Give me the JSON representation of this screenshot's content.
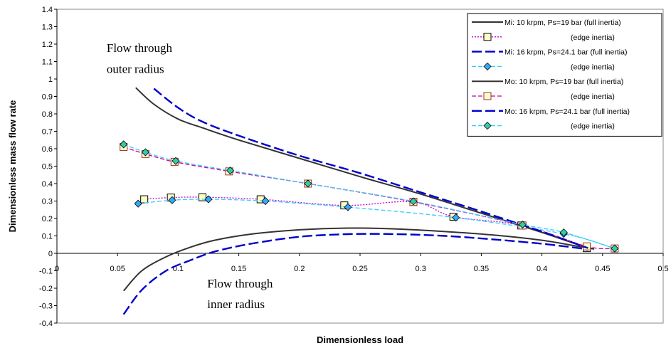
{
  "chart_data": {
    "type": "line",
    "title": "",
    "xlabel": "Dimensionless load",
    "ylabel": "Dimensionless mass flow rate",
    "xlim": [
      0,
      0.5
    ],
    "ylim": [
      -0.4,
      1.4
    ],
    "x_ticks": [
      0,
      0.05,
      0.1,
      0.15,
      0.2,
      0.25,
      0.3,
      0.35,
      0.4,
      0.45,
      0.5
    ],
    "x_tick_labels": [
      "0",
      "0.05",
      "0.1",
      "0.15",
      "0.2",
      "0.25",
      "0.3",
      "0.35",
      "0.4",
      "0.45",
      "0.5"
    ],
    "y_ticks": [
      -0.4,
      -0.3,
      -0.2,
      -0.1,
      0,
      0.1,
      0.2,
      0.3,
      0.4,
      0.5,
      0.6,
      0.7,
      0.8,
      0.9,
      1,
      1.1,
      1.2,
      1.3,
      1.4
    ],
    "y_tick_labels": [
      "-0.4",
      "-0.3",
      "-0.2",
      "-0.1",
      "0",
      "0.1",
      "0.2",
      "0.3",
      "0.4",
      "0.5",
      "0.6",
      "0.7",
      "0.8",
      "0.9",
      "1",
      "1.1",
      "1.2",
      "1.3",
      "1.4"
    ],
    "grid": false,
    "legend_position": "top-right",
    "annotations": [
      {
        "text": "Flow through",
        "x": 0.041,
        "y": 1.155
      },
      {
        "text": "outer radius",
        "x": 0.041,
        "y": 1.035
      },
      {
        "text": "Flow through",
        "x": 0.124,
        "y": -0.195
      },
      {
        "text": "inner radius",
        "x": 0.124,
        "y": -0.315
      }
    ],
    "series": [
      {
        "name": "Mi: 10 krpm, Ps=19 bar (full inertia)",
        "color": "#333333",
        "dash": "solid",
        "marker": "none",
        "x": [
          0.055,
          0.07,
          0.09,
          0.11,
          0.13,
          0.16,
          0.2,
          0.24,
          0.28,
          0.32,
          0.36,
          0.4,
          0.43,
          0.443
        ],
        "y": [
          -0.215,
          -0.1,
          -0.02,
          0.035,
          0.075,
          0.11,
          0.135,
          0.145,
          0.14,
          0.125,
          0.105,
          0.075,
          0.04,
          0.025
        ]
      },
      {
        "name": "(edge inertia)",
        "color": "#cc00cc",
        "dash": "dotted",
        "marker": "square",
        "marker_fill": "#ffffcc",
        "marker_stroke": "#000000",
        "x": [
          0.072,
          0.094,
          0.12,
          0.168,
          0.237,
          0.294,
          0.327,
          0.383,
          0.437
        ],
        "y": [
          0.31,
          0.32,
          0.322,
          0.31,
          0.275,
          0.295,
          0.21,
          0.16,
          0.03
        ]
      },
      {
        "name": "Mi: 16 krpm, Ps=24.1 bar (full inertia)",
        "color": "#0000cc",
        "dash": "longdash",
        "marker": "none",
        "x": [
          0.055,
          0.07,
          0.09,
          0.11,
          0.13,
          0.16,
          0.2,
          0.24,
          0.28,
          0.32,
          0.36,
          0.4,
          0.43,
          0.438
        ],
        "y": [
          -0.35,
          -0.21,
          -0.1,
          -0.04,
          0.01,
          0.055,
          0.095,
          0.11,
          0.11,
          0.1,
          0.08,
          0.055,
          0.03,
          0.02
        ]
      },
      {
        "name": "(edge inertia)",
        "color": "#33ccff",
        "dash": "dashed",
        "marker": "diamond",
        "marker_fill": "#33aaff",
        "marker_stroke": "#000000",
        "x": [
          0.067,
          0.095,
          0.125,
          0.172,
          0.24,
          0.329,
          0.418,
          0.46
        ],
        "y": [
          0.285,
          0.305,
          0.31,
          0.3,
          0.265,
          0.205,
          0.112,
          0.028
        ]
      },
      {
        "name": "Mo: 10 krpm, Ps=19 bar (full inertia)",
        "color": "#333333",
        "dash": "solid",
        "marker": "none",
        "x": [
          0.065,
          0.08,
          0.1,
          0.12,
          0.15,
          0.2,
          0.25,
          0.3,
          0.35,
          0.4,
          0.43,
          0.443
        ],
        "y": [
          0.95,
          0.855,
          0.77,
          0.72,
          0.65,
          0.545,
          0.44,
          0.34,
          0.23,
          0.12,
          0.05,
          0.025
        ]
      },
      {
        "name": "(edge inertia)",
        "color": "#cc0099",
        "dash": "dashed",
        "marker": "square",
        "marker_fill": "#ffffcc",
        "marker_stroke": "#993333",
        "x": [
          0.055,
          0.073,
          0.097,
          0.142,
          0.207,
          0.294,
          0.384,
          0.437,
          0.46
        ],
        "y": [
          0.61,
          0.57,
          0.525,
          0.47,
          0.4,
          0.295,
          0.16,
          0.04,
          0.028
        ]
      },
      {
        "name": "Mo: 16 krpm, Ps=24.1 bar (full inertia)",
        "color": "#0000cc",
        "dash": "longdash",
        "marker": "none",
        "x": [
          0.08,
          0.1,
          0.12,
          0.15,
          0.2,
          0.25,
          0.3,
          0.35,
          0.4,
          0.43,
          0.438
        ],
        "y": [
          0.945,
          0.835,
          0.755,
          0.675,
          0.56,
          0.46,
          0.35,
          0.24,
          0.125,
          0.05,
          0.03
        ]
      },
      {
        "name": "(edge inertia)",
        "color": "#33ccff",
        "dash": "dashed",
        "marker": "diamond",
        "marker_fill": "#33ccaa",
        "marker_stroke": "#000000",
        "x": [
          0.055,
          0.073,
          0.098,
          0.143,
          0.207,
          0.294,
          0.384,
          0.418,
          0.46
        ],
        "y": [
          0.625,
          0.58,
          0.53,
          0.475,
          0.4,
          0.298,
          0.165,
          0.12,
          0.028
        ]
      }
    ]
  }
}
